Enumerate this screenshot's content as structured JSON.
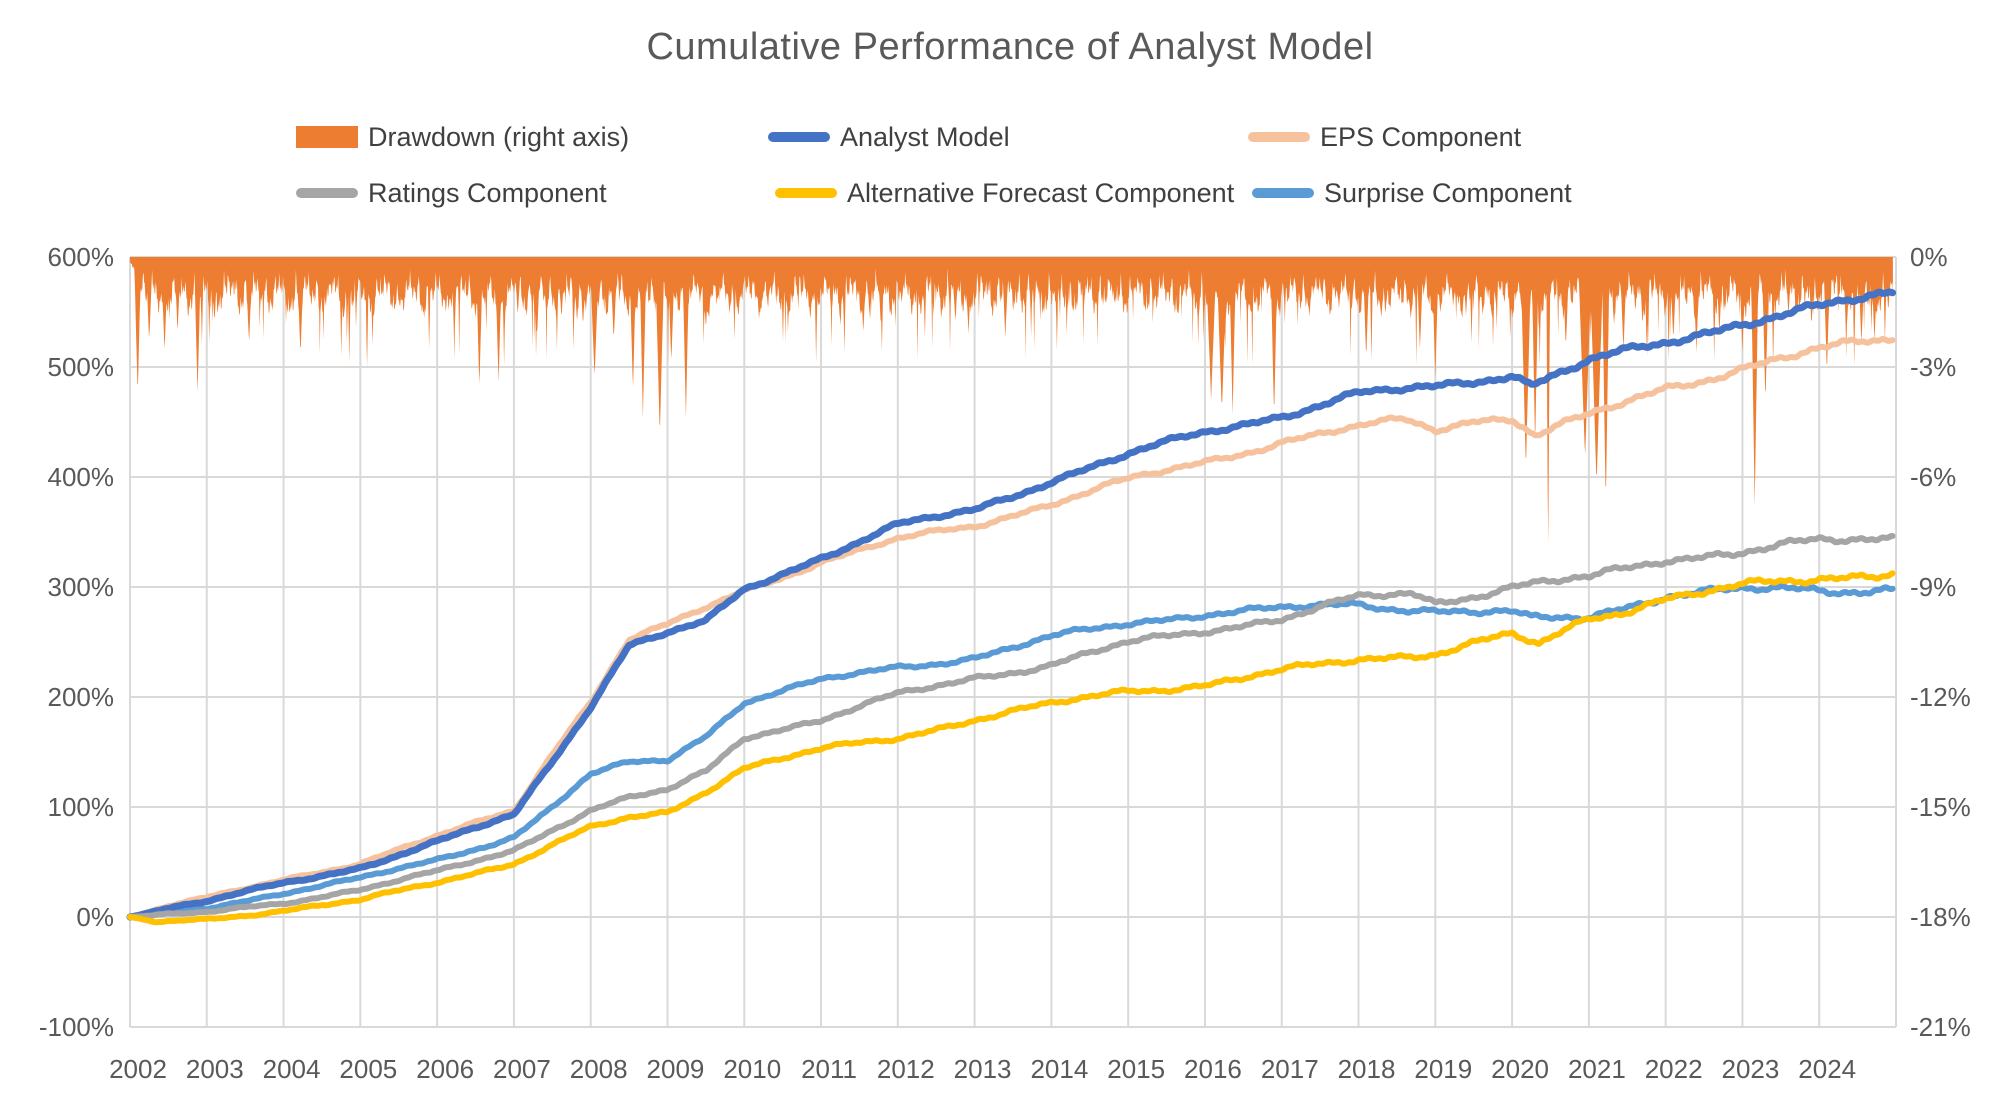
{
  "title": "Cumulative Performance of Analyst Model",
  "legend": {
    "items": [
      {
        "label": "Drawdown (right axis)",
        "marker": "rect",
        "color": "#ED7D31"
      },
      {
        "label": "Analyst Model",
        "marker": "line",
        "color": "#4472C4"
      },
      {
        "label": "EPS Component",
        "marker": "line",
        "color": "#F6C29E"
      },
      {
        "label": "Ratings Component",
        "marker": "line",
        "color": "#A5A5A5"
      },
      {
        "label": "Alternative Forecast Component",
        "marker": "line",
        "color": "#FFC000"
      },
      {
        "label": "Surprise Component",
        "marker": "line",
        "color": "#5B9BD5"
      }
    ]
  },
  "chart_data": {
    "type": "line",
    "title": "Cumulative Performance of Analyst Model",
    "grid": true,
    "colors": {
      "gridline": "#D9D9D9",
      "axis_text": "#595959",
      "background": "#FFFFFF"
    },
    "x_axis": {
      "range": [
        2002,
        2025
      ],
      "tick_labels": [
        "2002",
        "2003",
        "2004",
        "2005",
        "2006",
        "2007",
        "2008",
        "2009",
        "2010",
        "2011",
        "2012",
        "2013",
        "2014",
        "2015",
        "2016",
        "2017",
        "2018",
        "2019",
        "2020",
        "2021",
        "2022",
        "2023",
        "2024"
      ]
    },
    "y_axis_left": {
      "range": [
        -100,
        600
      ],
      "tick_step": 100,
      "tick_labels": [
        "600%",
        "500%",
        "400%",
        "300%",
        "200%",
        "100%",
        "0%",
        "-100%"
      ],
      "tick_values": [
        600,
        500,
        400,
        300,
        200,
        100,
        0,
        -100
      ]
    },
    "y_axis_right": {
      "range": [
        -21,
        0
      ],
      "tick_step": 3,
      "tick_labels": [
        "0%",
        "-3%",
        "-6%",
        "-9%",
        "-12%",
        "-15%",
        "-18%",
        "-21%"
      ],
      "tick_values": [
        0,
        -3,
        -6,
        -9,
        -12,
        -15,
        -18,
        -21
      ]
    },
    "series": [
      {
        "name": "Analyst Model",
        "color": "#4472C4",
        "width": 7,
        "axis": "left",
        "points": [
          [
            2002,
            0
          ],
          [
            2002.5,
            8
          ],
          [
            2003,
            14
          ],
          [
            2004,
            31
          ],
          [
            2005,
            45
          ],
          [
            2006,
            68
          ],
          [
            2007,
            93
          ],
          [
            2007.5,
            142
          ],
          [
            2008,
            192
          ],
          [
            2008.5,
            247
          ],
          [
            2009,
            258
          ],
          [
            2009.5,
            268
          ],
          [
            2010,
            298
          ],
          [
            2011,
            327
          ],
          [
            2012,
            356
          ],
          [
            2013,
            370
          ],
          [
            2014,
            397
          ],
          [
            2015,
            420
          ],
          [
            2016,
            441
          ],
          [
            2017,
            456
          ],
          [
            2018,
            475
          ],
          [
            2019,
            482
          ],
          [
            2020,
            494
          ],
          [
            2020.25,
            484
          ],
          [
            2021,
            505
          ],
          [
            2022,
            522
          ],
          [
            2023,
            541
          ],
          [
            2024,
            554
          ],
          [
            2024.96,
            567
          ]
        ]
      },
      {
        "name": "EPS Component",
        "color": "#F6C29E",
        "width": 6,
        "axis": "left",
        "points": [
          [
            2002,
            0
          ],
          [
            2002.5,
            10
          ],
          [
            2003,
            17
          ],
          [
            2004,
            34
          ],
          [
            2005,
            49
          ],
          [
            2006,
            73
          ],
          [
            2007,
            97
          ],
          [
            2007.5,
            149
          ],
          [
            2008,
            196
          ],
          [
            2008.5,
            252
          ],
          [
            2009,
            265
          ],
          [
            2010,
            297
          ],
          [
            2011,
            323
          ],
          [
            2012,
            343
          ],
          [
            2013,
            356
          ],
          [
            2014,
            376
          ],
          [
            2015,
            397
          ],
          [
            2016,
            414
          ],
          [
            2017,
            432
          ],
          [
            2018,
            445
          ],
          [
            2018.6,
            452
          ],
          [
            2019,
            444
          ],
          [
            2019.5,
            452
          ],
          [
            2020,
            454
          ],
          [
            2020.3,
            438
          ],
          [
            2021,
            455
          ],
          [
            2022,
            481
          ],
          [
            2023,
            499
          ],
          [
            2024,
            515
          ],
          [
            2024.96,
            527
          ]
        ]
      },
      {
        "name": "Ratings Component",
        "color": "#A5A5A5",
        "width": 6,
        "axis": "left",
        "points": [
          [
            2002,
            0
          ],
          [
            2002.5,
            2
          ],
          [
            2003,
            4
          ],
          [
            2004,
            13
          ],
          [
            2005,
            25
          ],
          [
            2006,
            41
          ],
          [
            2007,
            61
          ],
          [
            2007.5,
            80
          ],
          [
            2008,
            97
          ],
          [
            2008.5,
            108
          ],
          [
            2009,
            115
          ],
          [
            2009.5,
            132
          ],
          [
            2010,
            164
          ],
          [
            2011,
            179
          ],
          [
            2012,
            202
          ],
          [
            2013,
            218
          ],
          [
            2014,
            229
          ],
          [
            2015,
            249
          ],
          [
            2016,
            261
          ],
          [
            2017,
            271
          ],
          [
            2018,
            290
          ],
          [
            2018.7,
            295
          ],
          [
            2019,
            286
          ],
          [
            2020,
            300
          ],
          [
            2021,
            308
          ],
          [
            2022,
            326
          ],
          [
            2023,
            332
          ],
          [
            2024,
            341
          ],
          [
            2024.96,
            345
          ]
        ]
      },
      {
        "name": "Alternative Forecast Component",
        "color": "#FFC000",
        "width": 6,
        "axis": "left",
        "points": [
          [
            2002,
            0
          ],
          [
            2002.35,
            -5
          ],
          [
            2002.7,
            -3
          ],
          [
            2003,
            -2
          ],
          [
            2004,
            6
          ],
          [
            2005,
            15
          ],
          [
            2006,
            32
          ],
          [
            2007,
            49
          ],
          [
            2007.5,
            65
          ],
          [
            2008,
            81
          ],
          [
            2008.5,
            90
          ],
          [
            2009,
            95
          ],
          [
            2009.5,
            115
          ],
          [
            2010,
            136
          ],
          [
            2011,
            152
          ],
          [
            2012,
            163
          ],
          [
            2013,
            180
          ],
          [
            2014,
            193
          ],
          [
            2015,
            206
          ],
          [
            2016,
            211
          ],
          [
            2017,
            223
          ],
          [
            2018,
            235
          ],
          [
            2019,
            240
          ],
          [
            2020,
            256
          ],
          [
            2020.35,
            247
          ],
          [
            2021,
            272
          ],
          [
            2021.5,
            280
          ],
          [
            2022,
            290
          ],
          [
            2023,
            300
          ],
          [
            2024,
            308
          ],
          [
            2024.96,
            314
          ]
        ]
      },
      {
        "name": "Surprise Component",
        "color": "#5B9BD5",
        "width": 6,
        "axis": "left",
        "points": [
          [
            2002,
            0
          ],
          [
            2002.5,
            4
          ],
          [
            2003,
            8
          ],
          [
            2004,
            22
          ],
          [
            2005,
            35
          ],
          [
            2006,
            52
          ],
          [
            2007,
            73
          ],
          [
            2007.5,
            100
          ],
          [
            2008,
            129
          ],
          [
            2008.5,
            140
          ],
          [
            2009,
            143
          ],
          [
            2009.5,
            165
          ],
          [
            2010,
            196
          ],
          [
            2011,
            215
          ],
          [
            2012,
            227
          ],
          [
            2013,
            236
          ],
          [
            2014,
            254
          ],
          [
            2015,
            267
          ],
          [
            2016,
            276
          ],
          [
            2017,
            280
          ],
          [
            2018,
            284
          ],
          [
            2019,
            279
          ],
          [
            2020,
            276
          ],
          [
            2020.25,
            270
          ],
          [
            2021,
            273
          ],
          [
            2022,
            293
          ],
          [
            2023,
            297
          ],
          [
            2024,
            297
          ],
          [
            2024.96,
            299
          ]
        ]
      }
    ],
    "draw_order": [
      4,
      1,
      0,
      2,
      3
    ],
    "drawdown": {
      "name": "Drawdown (right axis)",
      "color": "#ED7D31",
      "axis": "right",
      "base_depth_range": [
        -0.2,
        -1.8
      ],
      "spikes": [
        [
          2002.1,
          -3.8
        ],
        [
          2002.25,
          -2.3
        ],
        [
          2002.45,
          -2.6
        ],
        [
          2002.62,
          -2.0
        ],
        [
          2002.88,
          -3.7
        ],
        [
          2003.1,
          -1.8
        ],
        [
          2003.55,
          -2.4
        ],
        [
          2003.8,
          -1.2
        ],
        [
          2004.05,
          -1.6
        ],
        [
          2004.22,
          -2.7
        ],
        [
          2004.55,
          -1.4
        ],
        [
          2004.78,
          -1.8
        ],
        [
          2005.15,
          -1.0
        ],
        [
          2005.5,
          -1.3
        ],
        [
          2005.85,
          -1.1
        ],
        [
          2006.15,
          -1.5
        ],
        [
          2006.55,
          -3.6
        ],
        [
          2006.8,
          -3.4
        ],
        [
          2007.05,
          -1.6
        ],
        [
          2007.3,
          -2.2
        ],
        [
          2007.62,
          -1.7
        ],
        [
          2007.9,
          -1.9
        ],
        [
          2008.05,
          -3.3,
          0.06
        ],
        [
          2008.3,
          -2.3
        ],
        [
          2008.55,
          -3.7
        ],
        [
          2008.68,
          -4.4
        ],
        [
          2008.9,
          -4.9,
          0.06
        ],
        [
          2009.05,
          -2.9
        ],
        [
          2009.24,
          -4.4
        ],
        [
          2009.5,
          -2.0
        ],
        [
          2009.8,
          -1.3
        ],
        [
          2010.2,
          -1.5
        ],
        [
          2010.55,
          -1.3
        ],
        [
          2010.9,
          -1.0
        ],
        [
          2011.3,
          -1.3
        ],
        [
          2011.55,
          -2.1
        ],
        [
          2011.78,
          -1.9
        ],
        [
          2012.05,
          -1.3
        ],
        [
          2012.3,
          -1.7
        ],
        [
          2012.75,
          -1.8
        ],
        [
          2012.92,
          -2.1
        ],
        [
          2013.4,
          -2.2
        ],
        [
          2013.75,
          -1.1
        ],
        [
          2014.1,
          -1.1
        ],
        [
          2014.42,
          -1.5
        ],
        [
          2014.8,
          -1.1
        ],
        [
          2015.2,
          -1.1
        ],
        [
          2015.65,
          -1.6
        ],
        [
          2015.9,
          -1.5
        ],
        [
          2016.08,
          -3.9,
          0.07
        ],
        [
          2016.22,
          -4.2,
          0.07
        ],
        [
          2016.36,
          -4.3
        ],
        [
          2016.6,
          -1.5
        ],
        [
          2016.9,
          -4.4
        ],
        [
          2017.25,
          -1.0
        ],
        [
          2017.6,
          -1.1
        ],
        [
          2018.1,
          -2.8
        ],
        [
          2018.35,
          -1.6
        ],
        [
          2018.8,
          -2.5
        ],
        [
          2019.0,
          -3.3
        ],
        [
          2019.4,
          -1.6
        ],
        [
          2019.75,
          -1.3
        ],
        [
          2020.18,
          -5.8,
          0.07
        ],
        [
          2020.3,
          -5.2
        ],
        [
          2020.47,
          -8.5,
          0.025
        ],
        [
          2020.7,
          -2.5
        ],
        [
          2020.95,
          -5.5,
          0.09
        ],
        [
          2021.1,
          -6.2,
          0.09
        ],
        [
          2021.22,
          -6.8,
          0.05
        ],
        [
          2021.45,
          -2.6
        ],
        [
          2021.7,
          -1.9
        ],
        [
          2022.1,
          -2.3
        ],
        [
          2022.4,
          -2.6
        ],
        [
          2022.7,
          -2.1
        ],
        [
          2023.0,
          -2.6
        ],
        [
          2023.16,
          -6.8,
          0.05
        ],
        [
          2023.3,
          -4.0
        ],
        [
          2023.6,
          -1.6
        ],
        [
          2023.9,
          -1.9
        ],
        [
          2024.1,
          -3.2
        ],
        [
          2024.35,
          -1.9
        ],
        [
          2024.55,
          -2.4
        ],
        [
          2024.72,
          -2.3
        ],
        [
          2024.9,
          -1.5
        ]
      ]
    }
  }
}
